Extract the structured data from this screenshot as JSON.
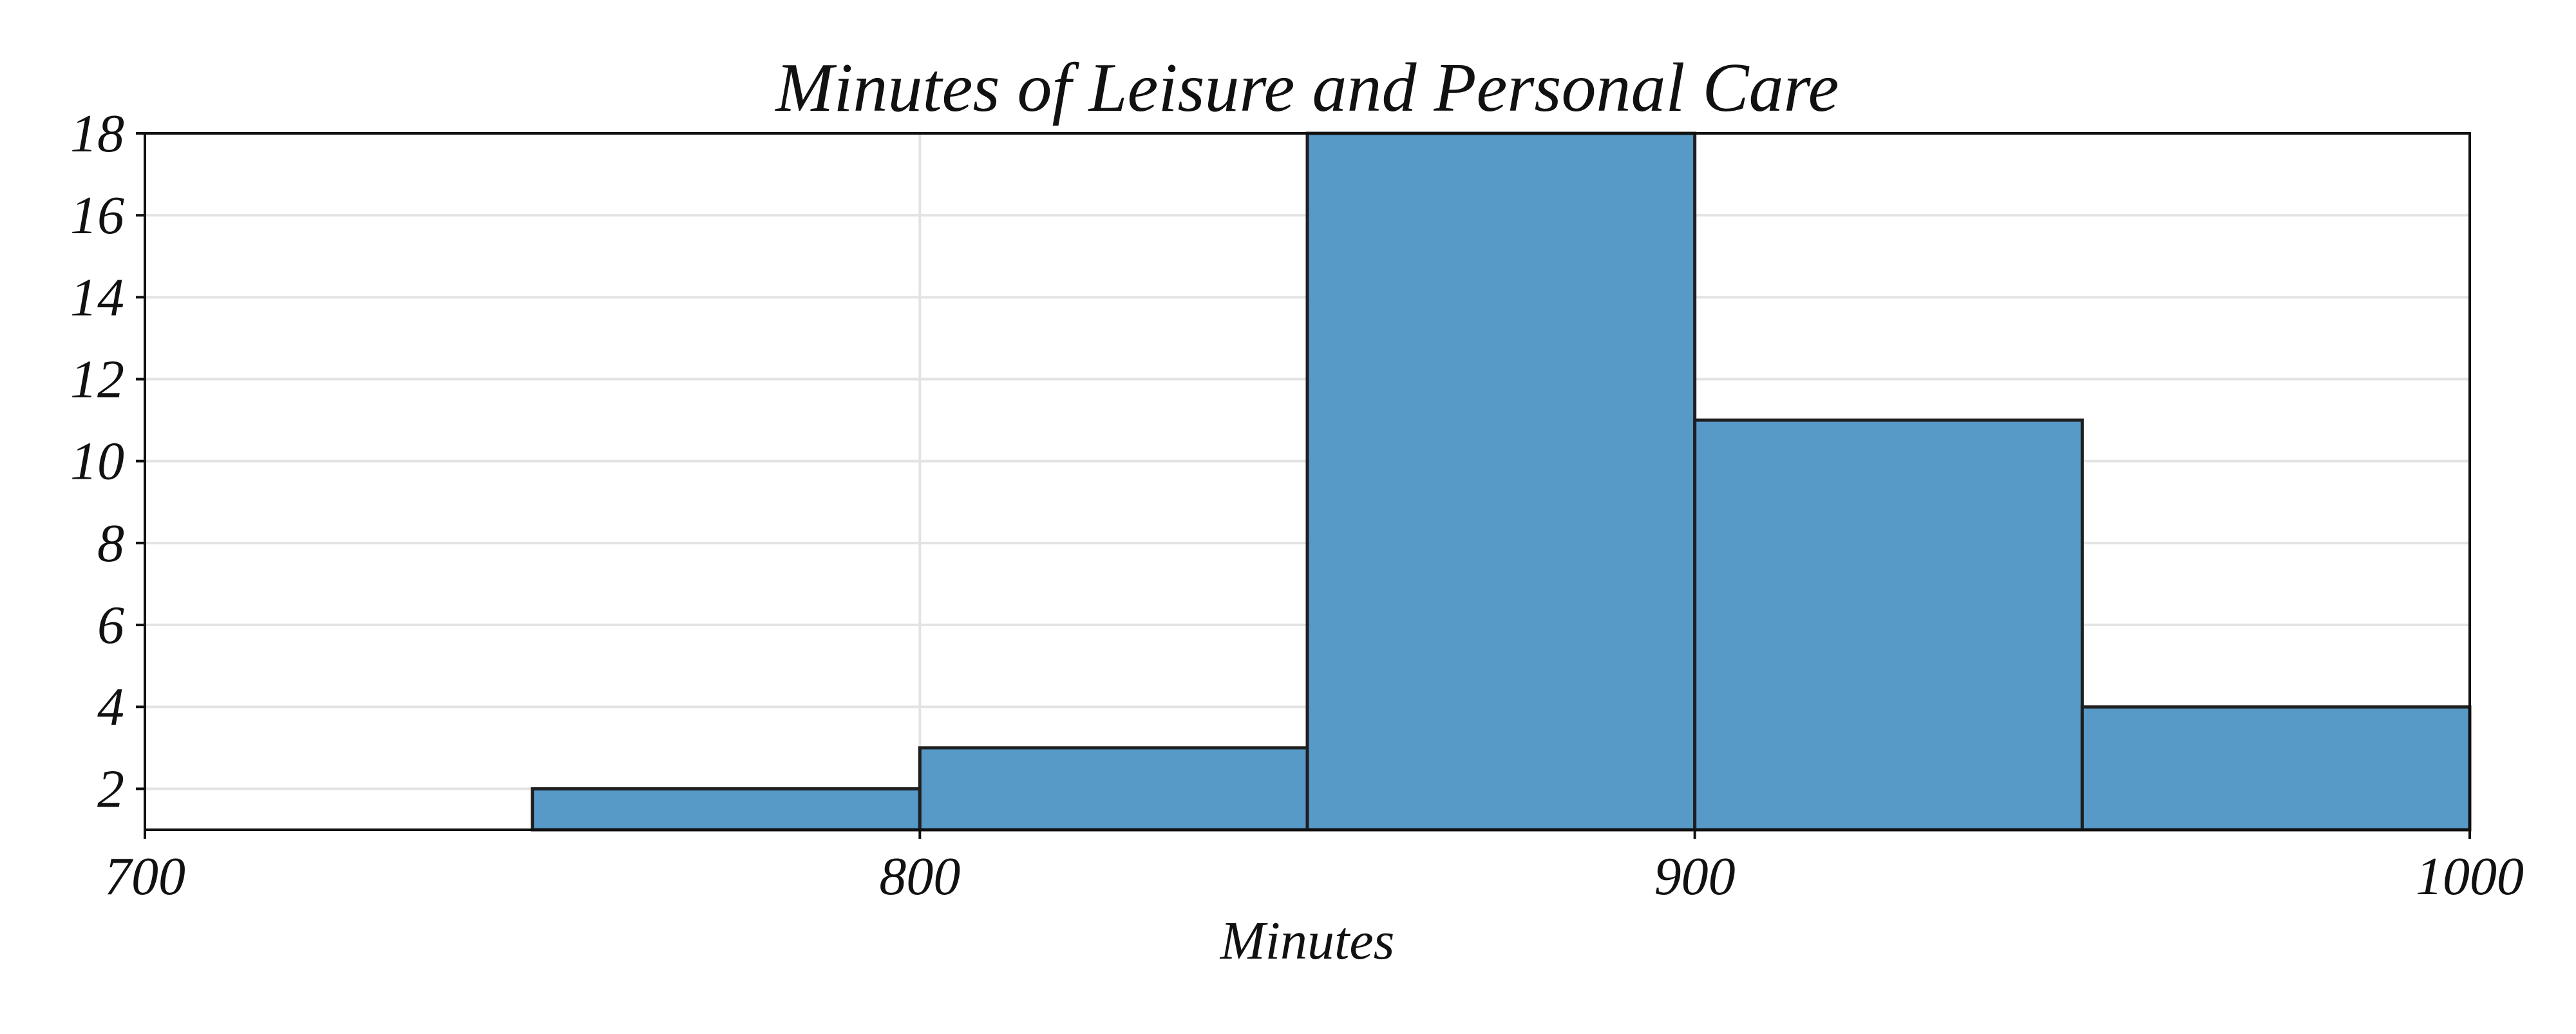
{
  "chart_data": {
    "type": "bar",
    "title": "Minutes of Leisure and Personal Care",
    "xlabel": "Minutes",
    "ylabel": "",
    "xlim": [
      700,
      1000
    ],
    "ylim": [
      1,
      18
    ],
    "x_ticks": [
      700,
      800,
      900,
      1000
    ],
    "y_ticks": [
      2,
      4,
      6,
      8,
      10,
      12,
      14,
      16,
      18
    ],
    "grid": true,
    "bar_color": "#5799c7",
    "bins": [
      {
        "start": 700,
        "end": 750,
        "value": 1
      },
      {
        "start": 750,
        "end": 800,
        "value": 2
      },
      {
        "start": 800,
        "end": 850,
        "value": 3
      },
      {
        "start": 850,
        "end": 900,
        "value": 18
      },
      {
        "start": 900,
        "end": 950,
        "value": 11
      },
      {
        "start": 950,
        "end": 1000,
        "value": 4
      }
    ]
  }
}
